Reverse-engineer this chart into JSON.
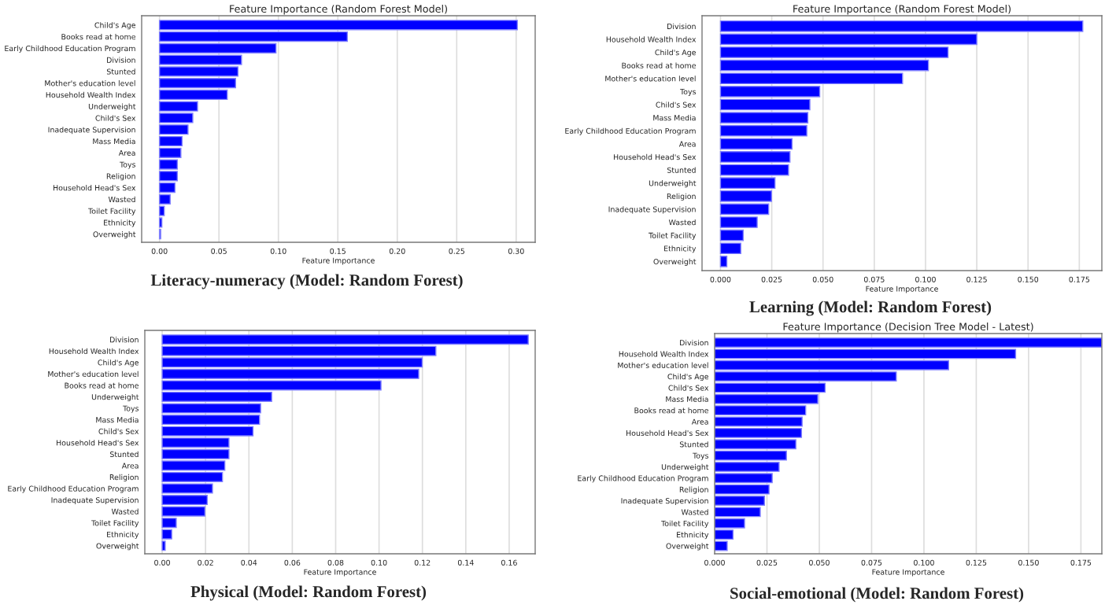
{
  "chart_data": [
    {
      "type": "bar",
      "orientation": "horizontal",
      "title": "Feature Importance (Random Forest Model)",
      "xlabel": "Feature Importance",
      "annotations": [
        "Literacy-numeracy (Model: Random Forest)"
      ],
      "grid": "x",
      "color": "#0000ff",
      "categories": [
        "Child's Age",
        "Books read at home",
        "Early Childhood Education Program",
        "Division",
        "Stunted",
        "Mother's education level",
        "Household Wealth Index",
        "Underweight",
        "Child's Sex",
        "Inadequate Supervision",
        "Mass Media",
        "Area",
        "Toys",
        "Religion",
        "Household Head's Sex",
        "Wasted",
        "Toilet Facility",
        "Ethnicity",
        "Overweight"
      ],
      "values": [
        0.301,
        0.158,
        0.098,
        0.069,
        0.066,
        0.064,
        0.057,
        0.032,
        0.028,
        0.024,
        0.019,
        0.018,
        0.015,
        0.015,
        0.013,
        0.009,
        0.004,
        0.002,
        0.001
      ],
      "xlim": [
        -0.015,
        0.316
      ],
      "xticks": [
        {
          "value": 0,
          "label": "0.00"
        },
        {
          "value": 0.05,
          "label": "0.05"
        },
        {
          "value": 0.1,
          "label": "0.10"
        },
        {
          "value": 0.15,
          "label": "0.15"
        },
        {
          "value": 0.2,
          "label": "0.20"
        },
        {
          "value": 0.25,
          "label": "0.25"
        },
        {
          "value": 0.3,
          "label": "0.30"
        }
      ]
    },
    {
      "type": "bar",
      "orientation": "horizontal",
      "title": "Feature Importance (Random Forest Model)",
      "xlabel": "Feature Importance",
      "annotations": [
        "Learning (Model: Random Forest)"
      ],
      "grid": "x",
      "color": "#0000ff",
      "categories": [
        "Division",
        "Household Wealth Index",
        "Child's Age",
        "Books read at home",
        "Mother's education level",
        "Toys",
        "Child's Sex",
        "Mass Media",
        "Early Childhood Education Program",
        "Area",
        "Household Head's Sex",
        "Stunted",
        "Underweight",
        "Religion",
        "Inadequate Supervision",
        "Wasted",
        "Toilet Facility",
        "Ethnicity",
        "Overweight"
      ],
      "values": [
        0.1767,
        0.125,
        0.111,
        0.1014,
        0.0888,
        0.0484,
        0.0436,
        0.0426,
        0.0421,
        0.0349,
        0.0339,
        0.0332,
        0.0266,
        0.0249,
        0.0235,
        0.0179,
        0.0111,
        0.0099,
        0.0031
      ],
      "xlim": [
        -0.009,
        0.186
      ],
      "xticks": [
        {
          "value": 0,
          "label": "0.000"
        },
        {
          "value": 0.025,
          "label": "0.025"
        },
        {
          "value": 0.05,
          "label": "0.050"
        },
        {
          "value": 0.075,
          "label": "0.075"
        },
        {
          "value": 0.1,
          "label": "0.100"
        },
        {
          "value": 0.125,
          "label": "0.125"
        },
        {
          "value": 0.15,
          "label": "0.150"
        },
        {
          "value": 0.175,
          "label": "0.175"
        }
      ]
    },
    {
      "type": "bar",
      "orientation": "horizontal",
      "xlabel": "Feature Importance",
      "annotations": [
        "Physical (Model: Random Forest)"
      ],
      "grid": "x",
      "color": "#0000ff",
      "categories": [
        "Division",
        "Household Wealth Index",
        "Child's Age",
        "Mother's education level",
        "Books read at home",
        "Underweight",
        "Toys",
        "Mass Media",
        "Child's Sex",
        "Household Head's Sex",
        "Stunted",
        "Area",
        "Religion",
        "Early Childhood Education Program",
        "Inadequate Supervision",
        "Wasted",
        "Toilet Facility",
        "Ethnicity",
        "Overweight"
      ],
      "values": [
        0.1688,
        0.1262,
        0.1199,
        0.1183,
        0.1009,
        0.0505,
        0.0454,
        0.0449,
        0.0419,
        0.0308,
        0.0308,
        0.0289,
        0.0278,
        0.0232,
        0.0208,
        0.0197,
        0.0065,
        0.0044,
        0.0014
      ],
      "xlim": [
        -0.008,
        0.172
      ],
      "xticks": [
        {
          "value": 0,
          "label": "0.00"
        },
        0.02,
        0.04,
        0.06,
        0.08,
        {
          "value": 0.1,
          "label": "0.10"
        },
        0.12,
        0.14,
        0.16
      ]
    },
    {
      "type": "bar",
      "orientation": "horizontal",
      "title": "Feature Importance (Decision Tree Model - Latest)",
      "xlabel": "Feature Importance",
      "annotations": [
        "Social-emotional (Model: Random Forest)"
      ],
      "grid": "x",
      "color": "#0000ff",
      "categories": [
        "Division",
        "Household Wealth Index",
        "Mother's education level",
        "Child's Age",
        "Child's Sex",
        "Mass Media",
        "Books read at home",
        "Area",
        "Household Head's Sex",
        "Stunted",
        "Toys",
        "Underweight",
        "Early Childhood Education Program",
        "Religion",
        "Inadequate Supervision",
        "Wasted",
        "Toilet Facility",
        "Ethnicity",
        "Overweight"
      ],
      "values": [
        0.185,
        0.1438,
        0.1118,
        0.0868,
        0.0528,
        0.0493,
        0.0435,
        0.0418,
        0.0415,
        0.0388,
        0.0343,
        0.0308,
        0.0275,
        0.026,
        0.0238,
        0.0218,
        0.0143,
        0.0088,
        0.006
      ],
      "xlim": [
        0,
        0.185
      ],
      "xticks": [
        {
          "value": 0,
          "label": "0.000"
        },
        {
          "value": 0.025,
          "label": "0.025"
        },
        {
          "value": 0.05,
          "label": "0.050"
        },
        {
          "value": 0.075,
          "label": "0.075"
        },
        {
          "value": 0.1,
          "label": "0.100"
        },
        {
          "value": 0.125,
          "label": "0.125"
        },
        {
          "value": 0.15,
          "label": "0.150"
        },
        {
          "value": 0.175,
          "label": "0.175"
        }
      ]
    }
  ]
}
